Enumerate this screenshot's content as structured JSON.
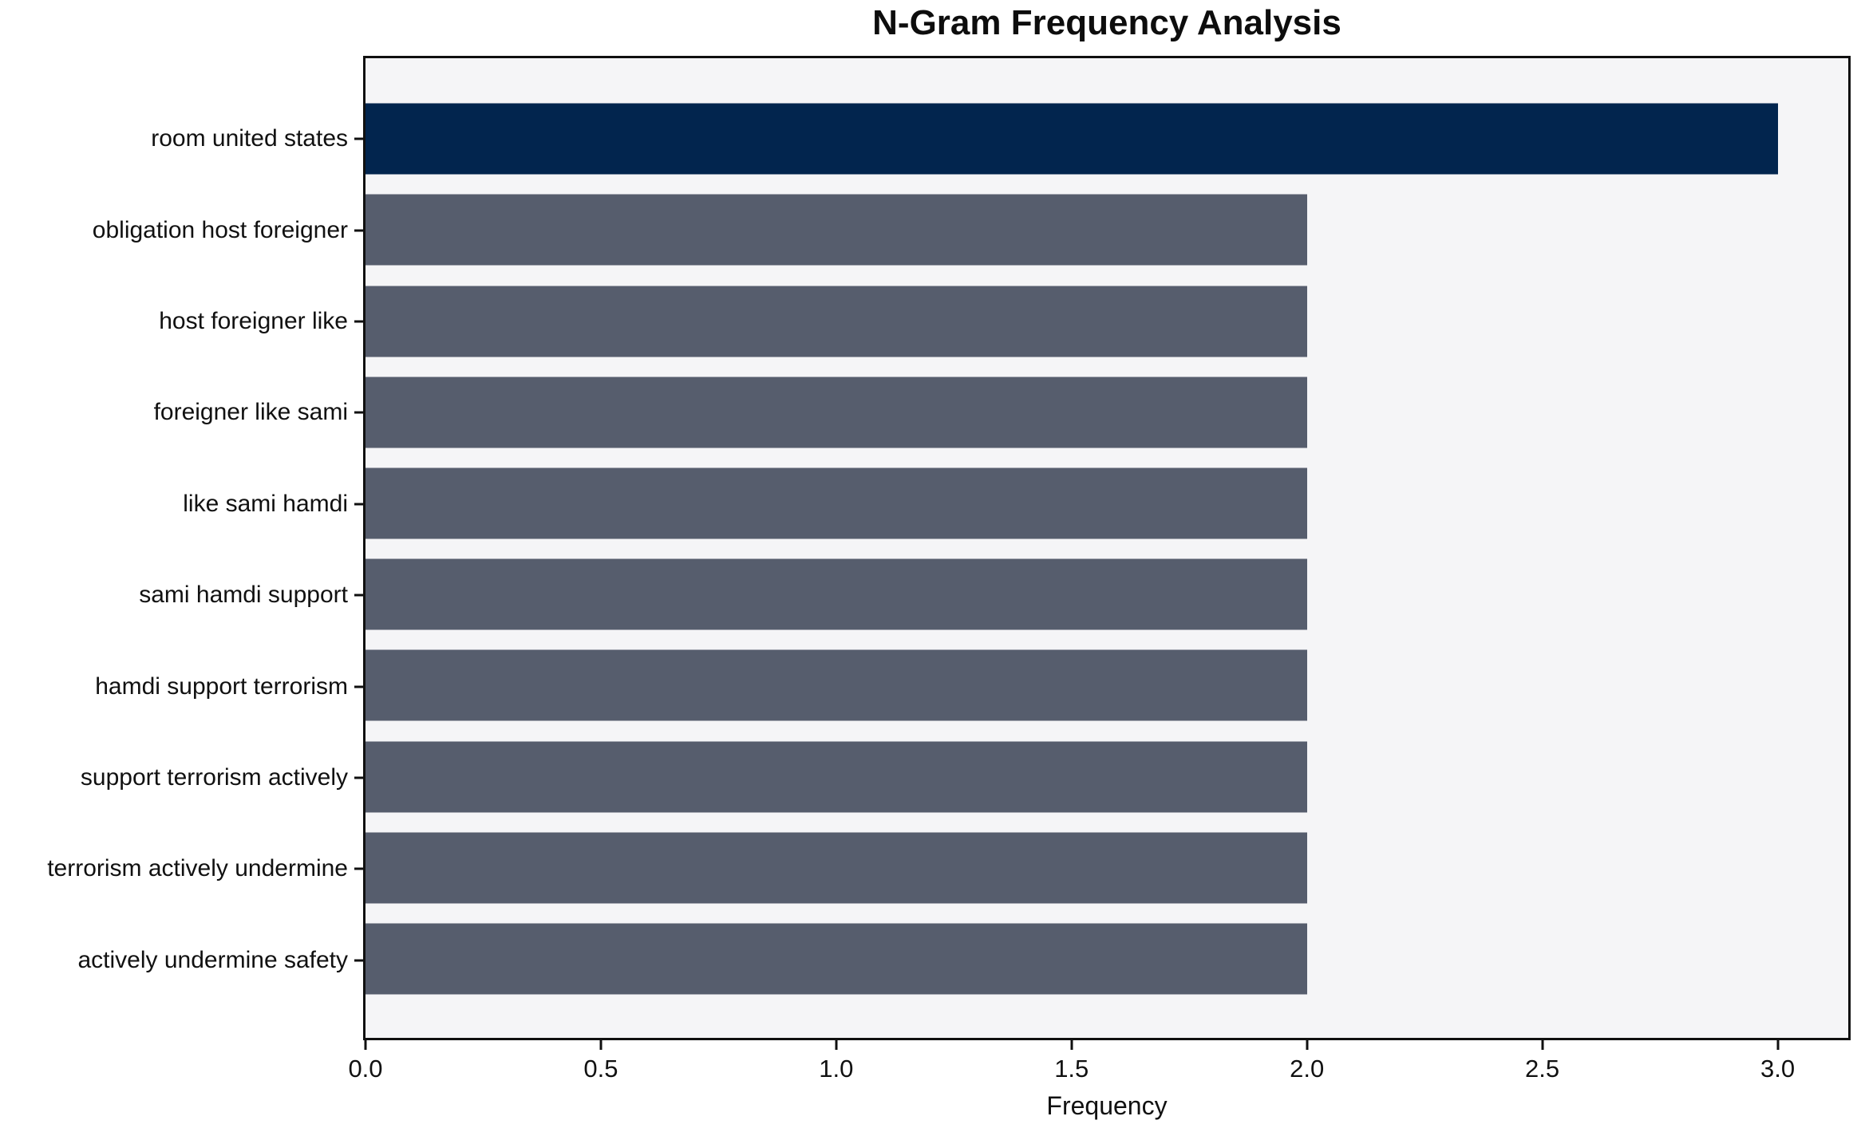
{
  "chart_data": {
    "type": "bar",
    "orientation": "horizontal",
    "title": "N-Gram Frequency Analysis",
    "xlabel": "Frequency",
    "ylabel": "",
    "categories": [
      "room united states",
      "obligation host foreigner",
      "host foreigner like",
      "foreigner like sami",
      "like sami hamdi",
      "sami hamdi support",
      "hamdi support terrorism",
      "support terrorism actively",
      "terrorism actively undermine",
      "actively undermine safety"
    ],
    "values": [
      3,
      2,
      2,
      2,
      2,
      2,
      2,
      2,
      2,
      2
    ],
    "bar_colors": [
      "#02254e",
      "#565d6d",
      "#565d6d",
      "#565d6d",
      "#565d6d",
      "#565d6d",
      "#565d6d",
      "#565d6d",
      "#565d6d",
      "#565d6d"
    ],
    "x_ticks": [
      {
        "label": "0.0",
        "value": 0.0
      },
      {
        "label": "0.5",
        "value": 0.5
      },
      {
        "label": "1.0",
        "value": 1.0
      },
      {
        "label": "1.5",
        "value": 1.5
      },
      {
        "label": "2.0",
        "value": 2.0
      },
      {
        "label": "2.5",
        "value": 2.5
      },
      {
        "label": "3.0",
        "value": 3.0
      }
    ],
    "xlim": [
      0,
      3.15
    ],
    "grid": false,
    "legend": null,
    "colors": {
      "highlight_bar": "#02254e",
      "default_bar": "#565d6d",
      "plot_background": "#f5f5f7",
      "figure_background": "#ffffff",
      "axis_line": "#101010",
      "text": "#111111"
    }
  }
}
